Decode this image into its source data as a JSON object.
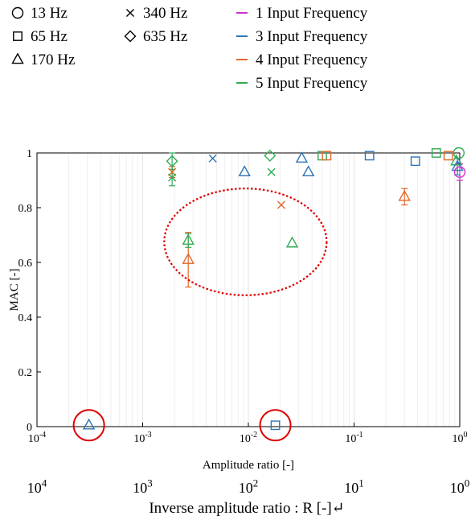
{
  "legend": {
    "markers": [
      {
        "label": "13 Hz",
        "shape": "circle"
      },
      {
        "label": "65 Hz",
        "shape": "square"
      },
      {
        "label": "170 Hz",
        "shape": "triangle"
      },
      {
        "label": "340 Hz",
        "shape": "x"
      },
      {
        "label": "635 Hz",
        "shape": "diamond"
      }
    ],
    "series": [
      {
        "label": "1 Input Frequency",
        "color": "#cc33cc"
      },
      {
        "label": "3 Input Frequency",
        "color": "#2e75b6"
      },
      {
        "label": "4 Input Frequency",
        "color": "#e0692a"
      },
      {
        "label": "5 Input Frequency",
        "color": "#33aa55"
      }
    ]
  },
  "inverse_axis": {
    "ticks": [
      {
        "base": "10",
        "exp": "4",
        "value": 10000
      },
      {
        "base": "10",
        "exp": "3",
        "value": 1000
      },
      {
        "base": "10",
        "exp": "2",
        "value": 100
      },
      {
        "base": "10",
        "exp": "1",
        "value": 10
      },
      {
        "base": "10",
        "exp": "0",
        "value": 1
      }
    ],
    "label": "Inverse amplitude ratio : R [-]↵"
  },
  "chart_data": {
    "type": "scatter",
    "xlabel": "Amplitude ratio [-]",
    "ylabel": "MAC [-]",
    "xscale": "log",
    "xlim": [
      0.0001,
      1
    ],
    "ylim": [
      0,
      1
    ],
    "grid": "x-minor",
    "xticks": [
      {
        "base": "10",
        "exp": "-4",
        "value": 0.0001
      },
      {
        "base": "10",
        "exp": "-3",
        "value": 0.001
      },
      {
        "base": "10",
        "exp": "-2",
        "value": 0.01
      },
      {
        "base": "10",
        "exp": "-1",
        "value": 0.1
      },
      {
        "base": "10",
        "exp": "0",
        "value": 1
      }
    ],
    "yticks": [
      "0",
      "0.2",
      "0.4",
      "0.6",
      "0.8",
      "1"
    ],
    "points": [
      {
        "x": 0.00031,
        "y": 0.005,
        "marker": "triangle",
        "series": "3 Input Frequency"
      },
      {
        "x": 0.018,
        "y": 0.005,
        "marker": "square",
        "series": "3 Input Frequency"
      },
      {
        "x": 0.0019,
        "y": 0.93,
        "err": 0.02,
        "marker": "x",
        "series": "4 Input Frequency"
      },
      {
        "x": 0.0019,
        "y": 0.91,
        "err": 0.03,
        "marker": "x",
        "series": "5 Input Frequency"
      },
      {
        "x": 0.0019,
        "y": 0.97,
        "err": 0.03,
        "marker": "diamond",
        "series": "5 Input Frequency"
      },
      {
        "x": 0.0027,
        "y": 0.61,
        "err": 0.1,
        "marker": "triangle",
        "series": "4 Input Frequency"
      },
      {
        "x": 0.0027,
        "y": 0.68,
        "err": 0.025,
        "marker": "triangle",
        "series": "5 Input Frequency"
      },
      {
        "x": 0.0046,
        "y": 0.98,
        "marker": "x",
        "series": "3 Input Frequency"
      },
      {
        "x": 0.0092,
        "y": 0.93,
        "marker": "triangle",
        "series": "3 Input Frequency"
      },
      {
        "x": 0.016,
        "y": 0.99,
        "marker": "diamond",
        "series": "5 Input Frequency"
      },
      {
        "x": 0.0165,
        "y": 0.93,
        "marker": "x",
        "series": "5 Input Frequency"
      },
      {
        "x": 0.0205,
        "y": 0.81,
        "marker": "x",
        "series": "4 Input Frequency"
      },
      {
        "x": 0.026,
        "y": 0.67,
        "marker": "triangle",
        "series": "5 Input Frequency"
      },
      {
        "x": 0.032,
        "y": 0.98,
        "marker": "triangle",
        "series": "3 Input Frequency"
      },
      {
        "x": 0.037,
        "y": 0.93,
        "marker": "triangle",
        "series": "3 Input Frequency"
      },
      {
        "x": 0.05,
        "y": 0.99,
        "marker": "square",
        "series": "5 Input Frequency"
      },
      {
        "x": 0.055,
        "y": 0.99,
        "marker": "square",
        "series": "4 Input Frequency"
      },
      {
        "x": 0.14,
        "y": 0.99,
        "marker": "square",
        "series": "3 Input Frequency"
      },
      {
        "x": 0.38,
        "y": 0.97,
        "marker": "square",
        "series": "3 Input Frequency"
      },
      {
        "x": 0.3,
        "y": 0.84,
        "err": 0.03,
        "marker": "triangle",
        "series": "4 Input Frequency"
      },
      {
        "x": 0.6,
        "y": 1.0,
        "marker": "square",
        "series": "5 Input Frequency"
      },
      {
        "x": 0.78,
        "y": 0.99,
        "marker": "square",
        "series": "4 Input Frequency"
      },
      {
        "x": 0.93,
        "y": 0.97,
        "marker": "triangle",
        "series": "5 Input Frequency"
      },
      {
        "x": 0.95,
        "y": 0.95,
        "err": 0.03,
        "marker": "triangle",
        "series": "3 Input Frequency"
      },
      {
        "x": 0.98,
        "y": 1.0,
        "marker": "circle",
        "series": "5 Input Frequency"
      },
      {
        "x": 1.0,
        "y": 0.93,
        "err": 0.03,
        "marker": "circle",
        "series": "1 Input Frequency"
      }
    ],
    "annotations": [
      {
        "type": "circle",
        "color": "#e00000",
        "x": 0.00031,
        "y": 0.005
      },
      {
        "type": "circle",
        "color": "#e00000",
        "x": 0.018,
        "y": 0.005
      },
      {
        "type": "dashed-ellipse",
        "color": "#e00000",
        "x_range": [
          0.0016,
          0.055
        ],
        "y_range": [
          0.48,
          0.87
        ]
      }
    ]
  }
}
